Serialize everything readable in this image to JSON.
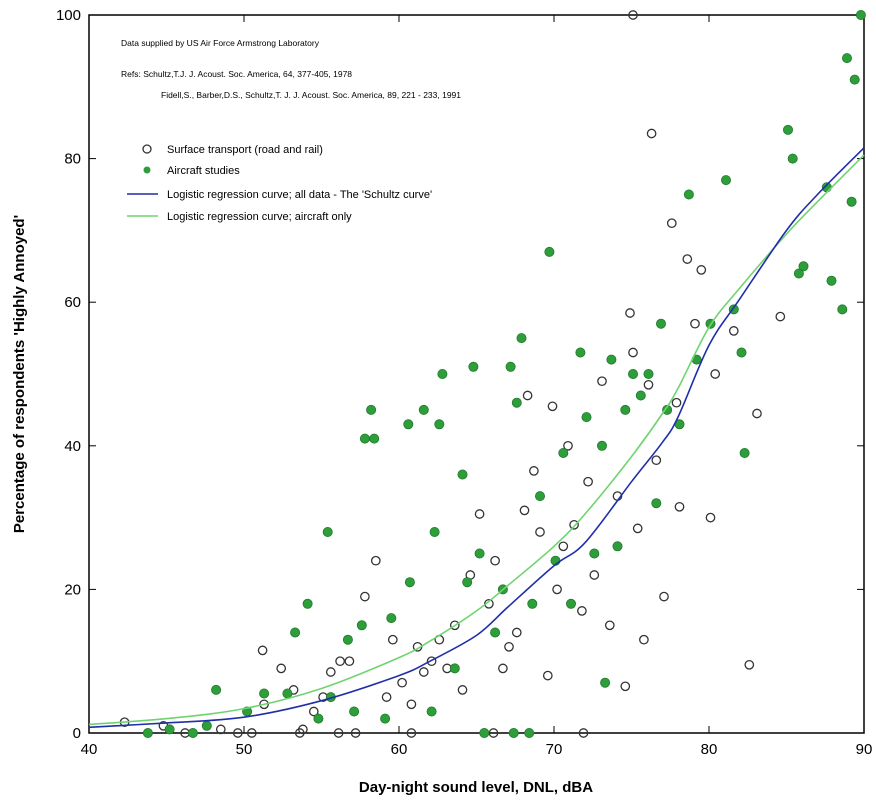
{
  "chart_data": {
    "type": "scatter",
    "xlabel": "Day-night sound level, DNL, dBA",
    "ylabel": "Percentage of respondents 'Highly Annoyed'",
    "xlim": [
      40,
      90
    ],
    "ylim": [
      0,
      100
    ],
    "xticks": [
      40,
      50,
      60,
      70,
      80,
      90
    ],
    "yticks": [
      0,
      20,
      40,
      60,
      80,
      100
    ],
    "grid": false,
    "legend_position": "top-left",
    "annotations": [
      "Data supplied by US Air Force Armstrong Laboratory",
      "Refs:   Schultz,T.J. J. Acoust. Soc. America, 64, 377-405, 1978",
      "Fidell,S., Barber,D.S., Schultz,T. J.  J. Acoust. Soc. America, 89, 221 - 233, 1991"
    ],
    "series": [
      {
        "name": "Surface transport (road and rail)",
        "kind": "open-circle",
        "color": "#333333",
        "points": [
          [
            42.3,
            1.5
          ],
          [
            44.8,
            1
          ],
          [
            46.2,
            0
          ],
          [
            48.5,
            0.5
          ],
          [
            49.6,
            0
          ],
          [
            50.5,
            0
          ],
          [
            51.2,
            11.5
          ],
          [
            51.3,
            4
          ],
          [
            52.4,
            9
          ],
          [
            53.2,
            6
          ],
          [
            53.8,
            0.5
          ],
          [
            54.5,
            3
          ],
          [
            55.1,
            5
          ],
          [
            55.6,
            8.5
          ],
          [
            56.2,
            10
          ],
          [
            56.8,
            10
          ],
          [
            57.2,
            0
          ],
          [
            57.8,
            19
          ],
          [
            58.5,
            24
          ],
          [
            59.2,
            5
          ],
          [
            59.6,
            13
          ],
          [
            60.2,
            7
          ],
          [
            60.8,
            4
          ],
          [
            61.2,
            12
          ],
          [
            61.6,
            8.5
          ],
          [
            62.1,
            10
          ],
          [
            62.6,
            13
          ],
          [
            63.1,
            9
          ],
          [
            63.6,
            15
          ],
          [
            64.1,
            6
          ],
          [
            64.6,
            22
          ],
          [
            65.2,
            30.5
          ],
          [
            65.8,
            18
          ],
          [
            66.2,
            24
          ],
          [
            66.7,
            9
          ],
          [
            67.1,
            12
          ],
          [
            67.6,
            14
          ],
          [
            68.1,
            31
          ],
          [
            68.3,
            47
          ],
          [
            68.7,
            36.5
          ],
          [
            69.1,
            28
          ],
          [
            69.6,
            8
          ],
          [
            69.9,
            45.5
          ],
          [
            70.2,
            20
          ],
          [
            70.6,
            26
          ],
          [
            70.9,
            40
          ],
          [
            71.3,
            29
          ],
          [
            71.8,
            17
          ],
          [
            72.2,
            35
          ],
          [
            72.6,
            22
          ],
          [
            73.1,
            49
          ],
          [
            73.6,
            15
          ],
          [
            74.1,
            33
          ],
          [
            74.6,
            6.5
          ],
          [
            74.9,
            58.5
          ],
          [
            75.1,
            53
          ],
          [
            75.4,
            28.5
          ],
          [
            75.8,
            13
          ],
          [
            76.1,
            48.5
          ],
          [
            76.3,
            83.5
          ],
          [
            76.6,
            38
          ],
          [
            77.1,
            19
          ],
          [
            77.6,
            71
          ],
          [
            77.9,
            46
          ],
          [
            78.1,
            31.5
          ],
          [
            78.6,
            66
          ],
          [
            79.1,
            57
          ],
          [
            79.5,
            64.5
          ],
          [
            80.1,
            30
          ],
          [
            80.4,
            50
          ],
          [
            81.6,
            56
          ],
          [
            82.6,
            9.5
          ],
          [
            83.1,
            44.5
          ],
          [
            84.6,
            58
          ],
          [
            75.1,
            100
          ],
          [
            60.8,
            0
          ],
          [
            66.1,
            0
          ],
          [
            71.9,
            0
          ],
          [
            56.1,
            0
          ],
          [
            53.6,
            0
          ]
        ]
      },
      {
        "name": "Aircraft studies",
        "kind": "filled-circle",
        "color": "#2e9e3a",
        "points": [
          [
            43.8,
            0
          ],
          [
            45.2,
            0.5
          ],
          [
            47.6,
            1
          ],
          [
            48.2,
            6
          ],
          [
            50.2,
            3
          ],
          [
            51.3,
            5.5
          ],
          [
            52.8,
            5.5
          ],
          [
            53.3,
            14
          ],
          [
            54.1,
            18
          ],
          [
            55.4,
            28
          ],
          [
            55.6,
            5
          ],
          [
            56.7,
            13
          ],
          [
            57.6,
            15
          ],
          [
            57.8,
            41
          ],
          [
            58.2,
            45
          ],
          [
            58.4,
            41
          ],
          [
            59.1,
            2
          ],
          [
            59.5,
            16
          ],
          [
            60.6,
            43
          ],
          [
            60.7,
            21
          ],
          [
            61.6,
            45
          ],
          [
            62.3,
            28
          ],
          [
            62.6,
            43
          ],
          [
            62.8,
            50
          ],
          [
            63.6,
            9
          ],
          [
            64.1,
            36
          ],
          [
            64.4,
            21
          ],
          [
            64.8,
            51
          ],
          [
            65.2,
            25
          ],
          [
            65.5,
            0
          ],
          [
            66.2,
            14
          ],
          [
            66.7,
            20
          ],
          [
            67.2,
            51
          ],
          [
            67.6,
            46
          ],
          [
            67.9,
            55
          ],
          [
            68.6,
            18
          ],
          [
            69.1,
            33
          ],
          [
            69.7,
            67
          ],
          [
            70.1,
            24
          ],
          [
            70.6,
            39
          ],
          [
            71.1,
            18
          ],
          [
            71.7,
            53
          ],
          [
            72.1,
            44
          ],
          [
            72.6,
            25
          ],
          [
            73.1,
            40
          ],
          [
            73.3,
            7
          ],
          [
            73.7,
            52
          ],
          [
            74.1,
            26
          ],
          [
            74.6,
            45
          ],
          [
            75.1,
            50
          ],
          [
            75.6,
            47
          ],
          [
            76.1,
            50
          ],
          [
            76.6,
            32
          ],
          [
            76.9,
            57
          ],
          [
            77.3,
            45
          ],
          [
            78.1,
            43
          ],
          [
            78.7,
            75
          ],
          [
            79.2,
            52
          ],
          [
            80.1,
            57
          ],
          [
            81.1,
            77
          ],
          [
            81.6,
            59
          ],
          [
            82.1,
            53
          ],
          [
            82.3,
            39
          ],
          [
            85.1,
            84
          ],
          [
            85.4,
            80
          ],
          [
            85.8,
            64
          ],
          [
            86.1,
            65
          ],
          [
            87.6,
            76
          ],
          [
            87.9,
            63
          ],
          [
            88.6,
            59
          ],
          [
            88.9,
            94
          ],
          [
            89.2,
            74
          ],
          [
            89.4,
            91
          ],
          [
            89.8,
            100
          ],
          [
            54.8,
            2
          ],
          [
            57.1,
            3
          ],
          [
            62.1,
            3
          ],
          [
            67.4,
            0
          ],
          [
            68.4,
            0
          ],
          [
            46.7,
            0
          ]
        ]
      },
      {
        "name": "Logistic regression curve; all data - The 'Schultz curve'",
        "kind": "line",
        "color": "#1f2fa8",
        "points": [
          [
            40,
            0.8
          ],
          [
            45,
            1.4
          ],
          [
            50,
            2.2
          ],
          [
            55,
            4.5
          ],
          [
            60,
            8.0
          ],
          [
            62,
            10.0
          ],
          [
            65,
            13.6
          ],
          [
            67,
            17.5
          ],
          [
            70,
            23.3
          ],
          [
            72,
            26.5
          ],
          [
            75,
            35.0
          ],
          [
            77,
            40.5
          ],
          [
            78,
            44.0
          ],
          [
            80,
            54.0
          ],
          [
            82,
            60.5
          ],
          [
            85,
            70.0
          ],
          [
            87,
            75.0
          ],
          [
            90,
            81.5
          ]
        ]
      },
      {
        "name": "Logistic regression curve; aircraft only",
        "kind": "line",
        "color": "#6fd46f",
        "points": [
          [
            40,
            1.2
          ],
          [
            45,
            2.0
          ],
          [
            50,
            3.4
          ],
          [
            55,
            6.2
          ],
          [
            60,
            10.5
          ],
          [
            62,
            12.8
          ],
          [
            65,
            17.0
          ],
          [
            67,
            20.5
          ],
          [
            70,
            26.0
          ],
          [
            72,
            30.5
          ],
          [
            75,
            38.5
          ],
          [
            77,
            44.5
          ],
          [
            78,
            48.0
          ],
          [
            80,
            56.5
          ],
          [
            82,
            62.0
          ],
          [
            85,
            69.5
          ],
          [
            87,
            74.0
          ],
          [
            90,
            80.5
          ]
        ]
      }
    ]
  }
}
